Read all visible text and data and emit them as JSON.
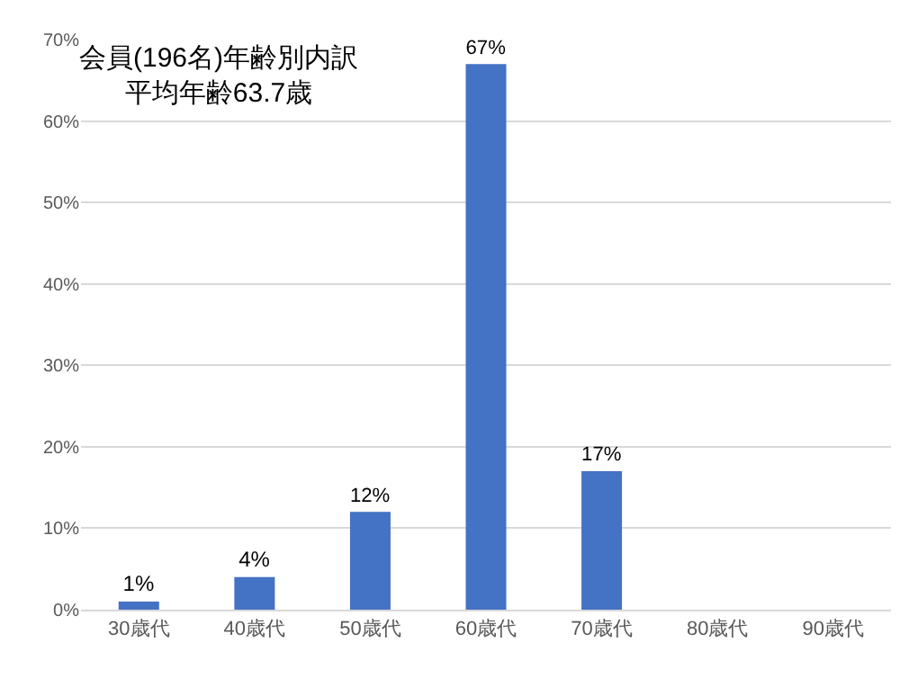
{
  "chart_data": {
    "type": "bar",
    "title": "会員(196名)年齢別内訳",
    "subtitle": "平均年齢63.7歳",
    "categories": [
      "30歳代",
      "40歳代",
      "50歳代",
      "60歳代",
      "70歳代",
      "80歳代",
      "90歳代"
    ],
    "values": [
      1,
      4,
      12,
      67,
      17,
      null,
      null
    ],
    "value_labels": [
      "1%",
      "4%",
      "12%",
      "67%",
      "17%",
      null,
      null
    ],
    "color": "#4472c4",
    "ylim": [
      0,
      70
    ],
    "yticks": [
      {
        "value": 0,
        "label": "0%"
      },
      {
        "value": 10,
        "label": "10%"
      },
      {
        "value": 20,
        "label": "20%"
      },
      {
        "value": 30,
        "label": "30%"
      },
      {
        "value": 40,
        "label": "40%"
      },
      {
        "value": 50,
        "label": "50%"
      },
      {
        "value": 60,
        "label": "60%"
      },
      {
        "value": 70,
        "label": "70%"
      }
    ],
    "grid": "y"
  }
}
